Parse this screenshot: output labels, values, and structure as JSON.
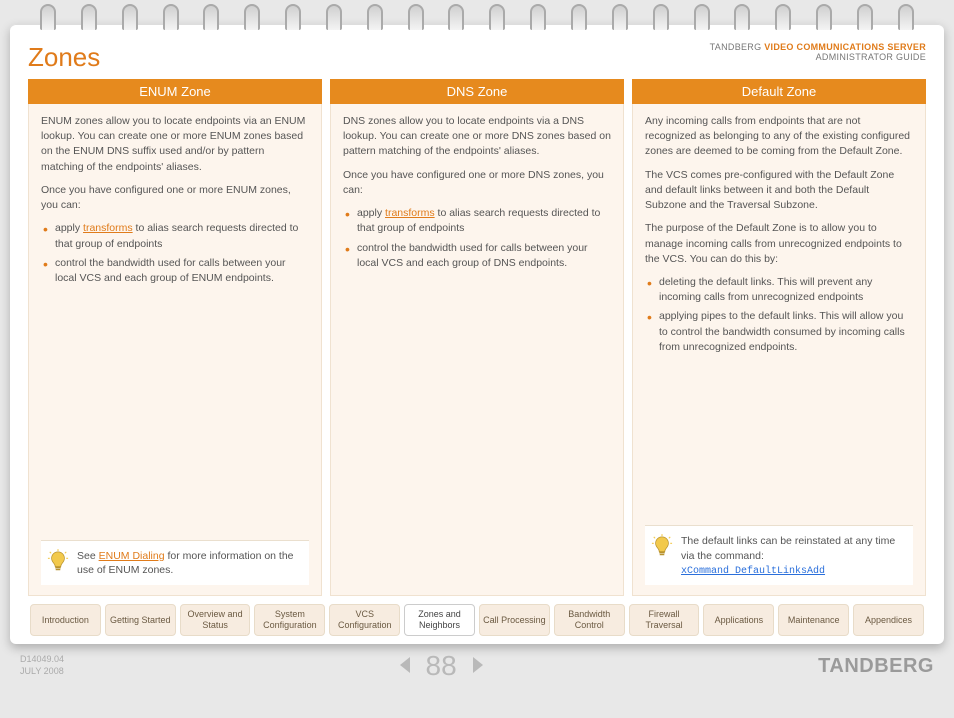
{
  "header": {
    "title": "Zones",
    "brand_prefix": "TANDBERG",
    "brand_orange": "VIDEO COMMUNICATIONS SERVER",
    "brand_line2": "ADMINISTRATOR GUIDE"
  },
  "columns": [
    {
      "title": "ENUM Zone",
      "p1": "ENUM zones allow you to locate endpoints via an ENUM lookup. You can create one or more ENUM zones based on the ENUM DNS suffix used and/or by pattern matching of the endpoints' aliases.",
      "p2": "Once you have configured one or more ENUM zones, you can:",
      "li1_pre": "apply ",
      "li1_link": "transforms",
      "li1_post": " to alias search requests directed to that group of endpoints",
      "li2": "control the bandwidth used for calls between your local VCS and each group of ENUM endpoints.",
      "tip_pre": "See ",
      "tip_link": "ENUM Dialing",
      "tip_post": " for more information on the use of ENUM zones."
    },
    {
      "title": "DNS Zone",
      "p1": "DNS zones allow you to locate endpoints via a  DNS lookup.  You can create one or more DNS zones based on pattern matching of the endpoints' aliases.",
      "p2": "Once you have configured one or more DNS zones, you can:",
      "li1_pre": "apply ",
      "li1_link": "transforms",
      "li1_post": " to alias search requests directed to that group of endpoints",
      "li2": "control the bandwidth used for calls between your local VCS and each group of DNS endpoints."
    },
    {
      "title": "Default Zone",
      "p1": "Any incoming calls from endpoints that are not recognized as belonging to any of the existing configured zones are deemed to be coming from the Default Zone.",
      "p2": "The VCS comes pre-configured with the Default Zone and default links between it and both the Default Subzone and the Traversal Subzone.",
      "p3": "The purpose of the Default Zone is to allow you to manage incoming calls from unrecognized endpoints to the VCS.  You can do this by:",
      "li1": "deleting the default links.  This will prevent any incoming calls from unrecognized endpoints",
      "li2": "applying pipes to the default links.  This will allow you to control the bandwidth consumed by incoming calls from unrecognized endpoints.",
      "tip_text": "The default links can be reinstated at any time via the command:",
      "tip_cmd": "xCommand DefaultLinksAdd"
    }
  ],
  "tabs": [
    "Introduction",
    "Getting Started",
    "Overview and Status",
    "System Configuration",
    "VCS Configuration",
    "Zones and Neighbors",
    "Call Processing",
    "Bandwidth Control",
    "Firewall Traversal",
    "Applications",
    "Maintenance",
    "Appendices"
  ],
  "active_tab_index": 5,
  "footer": {
    "docnum": "D14049.04",
    "date": "JULY 2008",
    "page": "88",
    "logo": "TANDBERG"
  },
  "colors": {
    "accent": "#e68a1e",
    "col_bg": "#fdf5ed",
    "text": "#555"
  }
}
